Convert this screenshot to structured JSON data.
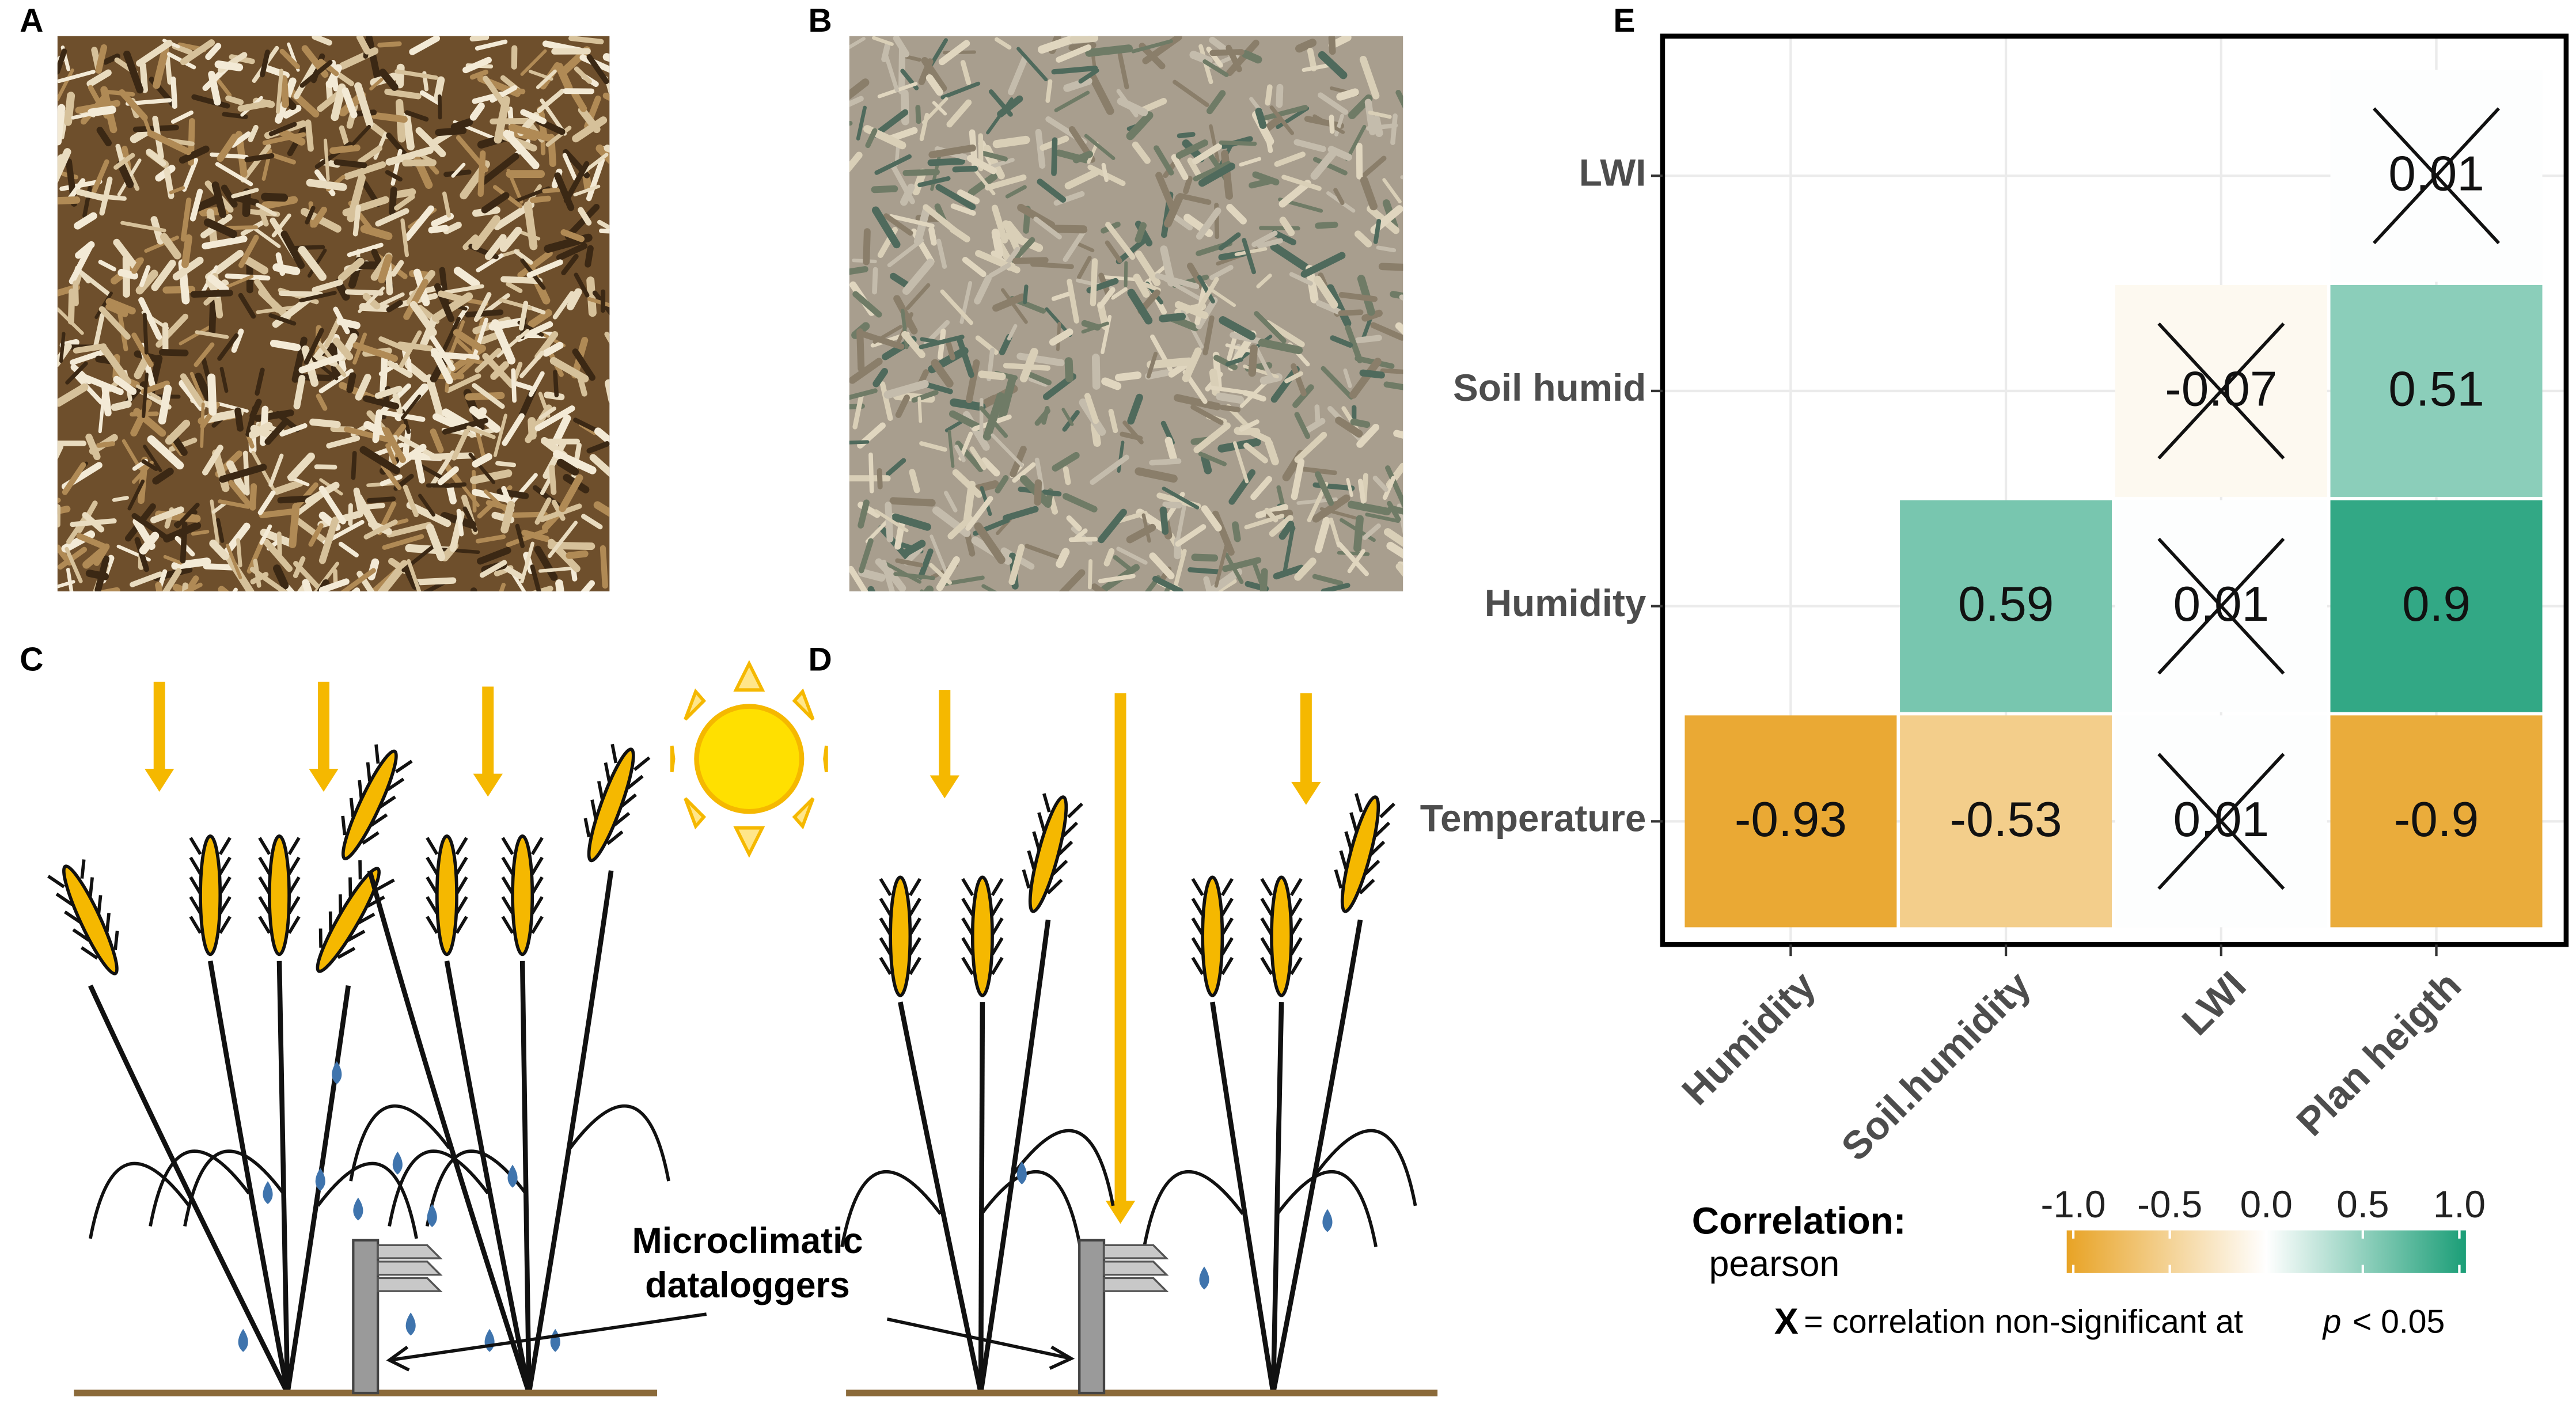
{
  "panel_labels": [
    "A",
    "B",
    "C",
    "D",
    "E"
  ],
  "illustration": {
    "logger_label": [
      "Microclimatic",
      "dataloggers"
    ]
  },
  "chart_data": {
    "type": "heatmap",
    "x_categories": [
      "Humidity",
      "Soil.humidity",
      "LWI",
      "Plan heigth"
    ],
    "y_categories": [
      "LWI",
      "Soil humid",
      "Humidity",
      "Temperature"
    ],
    "values": [
      [
        null,
        null,
        null,
        0.01
      ],
      [
        null,
        null,
        -0.07,
        0.51
      ],
      [
        null,
        0.59,
        0.01,
        0.9
      ],
      [
        -0.93,
        -0.53,
        0.01,
        -0.9
      ]
    ],
    "nonsignificant": [
      [
        null,
        null,
        null,
        true
      ],
      [
        null,
        null,
        true,
        false
      ],
      [
        null,
        false,
        true,
        false
      ],
      [
        false,
        false,
        true,
        false
      ]
    ],
    "grid": true,
    "colorbar": {
      "title": "Correlation:",
      "subtitle": "pearson",
      "lim": [
        -1,
        1
      ],
      "ticks": [
        {
          "value": -1,
          "label": "-1.0"
        },
        -0.5,
        {
          "value": 0,
          "label": "0.0"
        },
        0.5,
        {
          "value": 1,
          "label": "1.0"
        }
      ],
      "colors": [
        "#e8a325",
        "#ffffff",
        "#1b9e77"
      ]
    },
    "note": {
      "symbol": "X",
      "text": "= correlation non-significant at",
      "p": "p",
      "threshold": "< 0.05"
    }
  }
}
